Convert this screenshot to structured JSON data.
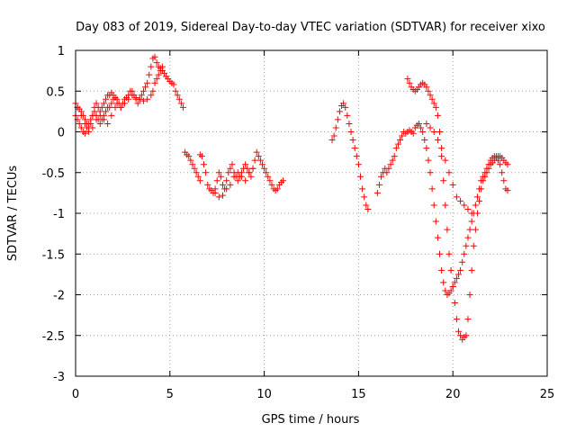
{
  "chart_data": {
    "type": "scatter",
    "title": "Day 083 of 2019, Sidereal Day-to-day VTEC variation (SDTVAR) for receiver xixo",
    "xlabel": "GPS time / hours",
    "ylabel": "SDTVAR / TECUs",
    "xlim": [
      0,
      25
    ],
    "ylim": [
      -3,
      1
    ],
    "xticks": [
      0,
      5,
      10,
      15,
      20,
      25
    ],
    "xtick_labels": [
      "0",
      "5",
      "10",
      "15",
      "20",
      "25"
    ],
    "yticks": [
      1,
      0.5,
      0,
      -0.5,
      -1,
      -1.5,
      -2,
      -2.5,
      -3
    ],
    "ytick_labels": [
      "1",
      "0.5",
      "0",
      "-0.5",
      "-1",
      "-1.5",
      "-2",
      "-2.5",
      "-3"
    ],
    "grid": true,
    "marker": "+",
    "color": "#ff0000",
    "x": [
      0.0,
      0.1,
      0.2,
      0.3,
      0.4,
      0.5,
      0.6,
      0.7,
      0.8,
      0.9,
      1.0,
      1.1,
      1.2,
      1.3,
      1.4,
      1.5,
      1.6,
      1.7,
      1.8,
      1.9,
      2.0,
      2.1,
      2.2,
      2.3,
      2.4,
      2.5,
      2.6,
      2.7,
      2.8,
      2.9,
      3.0,
      3.1,
      3.2,
      3.3,
      3.4,
      3.5,
      3.6,
      3.7,
      3.8,
      3.9,
      4.0,
      4.1,
      4.2,
      4.3,
      4.4,
      4.5,
      4.6,
      4.7,
      4.8,
      4.9,
      5.0,
      5.1,
      5.2,
      5.3,
      5.4,
      5.5,
      5.6,
      5.7,
      5.8,
      5.9,
      6.0,
      6.1,
      6.2,
      6.3,
      6.4,
      6.5,
      6.6,
      0.0,
      0.1,
      0.2,
      0.3,
      0.4,
      0.5,
      0.6,
      0.7,
      0.8,
      0.9,
      1.0,
      1.1,
      1.2,
      1.3,
      1.4,
      1.5,
      1.6,
      1.7,
      1.8,
      1.9,
      2.0,
      2.2,
      2.4,
      2.6,
      2.8,
      3.0,
      3.2,
      3.4,
      3.6,
      3.8,
      4.0,
      4.1,
      4.2,
      4.3,
      4.4,
      4.5,
      4.6,
      0.1,
      0.3,
      0.5,
      0.7,
      0.9,
      1.1,
      1.3,
      1.5,
      1.7,
      1.9,
      2.1,
      6.6,
      6.7,
      6.8,
      6.9,
      7.0,
      7.1,
      7.2,
      7.3,
      7.4,
      7.5,
      7.6,
      7.7,
      7.8,
      7.9,
      8.0,
      8.1,
      8.2,
      8.3,
      8.4,
      8.5,
      8.6,
      8.7,
      8.8,
      8.9,
      9.0,
      9.1,
      9.2,
      9.3,
      9.4,
      9.5,
      9.6,
      9.7,
      9.8,
      9.9,
      10.0,
      10.1,
      10.2,
      10.3,
      10.4,
      10.5,
      10.6,
      10.7,
      10.8,
      10.9,
      11.0,
      7.4,
      7.6,
      7.8,
      8.0,
      8.2,
      8.4,
      8.6,
      8.8,
      9.0,
      9.2,
      9.4,
      13.6,
      13.7,
      13.8,
      13.9,
      14.0,
      14.1,
      14.2,
      14.3,
      14.4,
      14.5,
      14.6,
      14.7,
      14.8,
      14.9,
      15.0,
      15.1,
      15.2,
      15.3,
      15.4,
      15.5,
      16.0,
      16.1,
      16.2,
      16.3,
      16.4,
      16.5,
      16.6,
      16.7,
      16.8,
      16.9,
      17.0,
      17.1,
      17.2,
      17.3,
      17.4,
      17.5,
      17.6,
      17.7,
      17.8,
      17.9,
      18.0,
      18.1,
      18.2,
      18.3,
      18.4,
      18.5,
      18.6,
      18.7,
      18.8,
      18.9,
      19.0,
      19.1,
      19.2,
      19.3,
      19.4,
      19.5,
      19.6,
      19.7,
      19.8,
      19.9,
      20.0,
      20.1,
      20.2,
      20.3,
      20.4,
      20.5,
      20.6,
      20.7,
      20.8,
      20.9,
      21.0,
      21.1,
      21.2,
      21.3,
      21.4,
      21.5,
      21.6,
      21.7,
      21.8,
      21.9,
      22.0,
      22.1,
      22.2,
      22.3,
      22.4,
      22.5,
      22.6,
      22.7,
      22.8,
      22.9,
      17.6,
      17.7,
      17.8,
      17.9,
      18.0,
      18.1,
      18.2,
      18.3,
      18.4,
      18.5,
      18.6,
      18.7,
      18.8,
      18.9,
      19.0,
      19.1,
      19.2,
      19.3,
      19.4,
      19.5,
      19.6,
      19.7,
      19.8,
      19.9,
      20.0,
      20.1,
      20.2,
      20.3,
      20.4,
      20.5,
      20.6,
      20.7,
      20.8,
      20.9,
      21.0,
      21.1,
      21.2,
      21.3,
      21.4,
      21.5,
      21.6,
      21.7,
      21.8,
      21.9,
      22.0,
      22.1,
      22.2,
      22.3,
      22.4,
      22.5,
      22.6,
      22.7,
      22.8,
      22.9,
      18.6,
      18.8,
      19.0,
      19.2,
      19.4,
      19.6,
      19.8,
      20.0,
      20.2,
      20.4,
      20.6,
      20.8,
      21.0
    ],
    "y": [
      0.35,
      0.3,
      0.28,
      0.25,
      0.2,
      0.15,
      0.1,
      0.05,
      0.1,
      0.2,
      0.3,
      0.35,
      0.3,
      0.25,
      0.3,
      0.35,
      0.4,
      0.45,
      0.45,
      0.48,
      0.45,
      0.42,
      0.4,
      0.35,
      0.3,
      0.35,
      0.4,
      0.42,
      0.45,
      0.5,
      0.5,
      0.45,
      0.4,
      0.35,
      0.4,
      0.45,
      0.5,
      0.55,
      0.6,
      0.7,
      0.8,
      0.9,
      0.92,
      0.85,
      0.8,
      0.78,
      0.75,
      0.72,
      0.68,
      0.65,
      0.62,
      0.6,
      0.58,
      0.5,
      0.45,
      0.4,
      0.35,
      0.3,
      -0.25,
      -0.28,
      -0.3,
      -0.35,
      -0.4,
      -0.45,
      -0.5,
      -0.55,
      -0.6,
      0.2,
      0.15,
      0.1,
      0.05,
      0.0,
      -0.02,
      0.05,
      0.1,
      0.15,
      0.2,
      0.25,
      0.2,
      0.15,
      0.1,
      0.15,
      0.2,
      0.25,
      0.3,
      0.3,
      0.35,
      0.4,
      0.35,
      0.3,
      0.35,
      0.4,
      0.45,
      0.42,
      0.4,
      0.38,
      0.4,
      0.45,
      0.5,
      0.6,
      0.65,
      0.7,
      0.75,
      0.8,
      0.3,
      0.2,
      0.1,
      0.0,
      0.05,
      0.15,
      0.2,
      0.15,
      0.1,
      0.2,
      0.3,
      -0.28,
      -0.3,
      -0.4,
      -0.5,
      -0.65,
      -0.7,
      -0.72,
      -0.75,
      -0.7,
      -0.6,
      -0.5,
      -0.55,
      -0.65,
      -0.7,
      -0.6,
      -0.5,
      -0.45,
      -0.4,
      -0.5,
      -0.55,
      -0.6,
      -0.55,
      -0.5,
      -0.45,
      -0.4,
      -0.45,
      -0.5,
      -0.55,
      -0.45,
      -0.35,
      -0.25,
      -0.3,
      -0.35,
      -0.4,
      -0.45,
      -0.5,
      -0.55,
      -0.6,
      -0.65,
      -0.7,
      -0.72,
      -0.7,
      -0.65,
      -0.62,
      -0.6,
      -0.75,
      -0.8,
      -0.78,
      -0.7,
      -0.65,
      -0.55,
      -0.5,
      -0.55,
      -0.6,
      -0.5,
      -0.45,
      -0.1,
      -0.05,
      0.05,
      0.15,
      0.25,
      0.32,
      0.35,
      0.3,
      0.2,
      0.1,
      0.0,
      -0.1,
      -0.2,
      -0.3,
      -0.4,
      -0.55,
      -0.7,
      -0.8,
      -0.9,
      -0.95,
      -0.75,
      -0.65,
      -0.55,
      -0.5,
      -0.45,
      -0.5,
      -0.45,
      -0.4,
      -0.35,
      -0.3,
      -0.2,
      -0.15,
      -0.1,
      -0.05,
      0.0,
      -0.02,
      0.0,
      0.02,
      0.0,
      -0.02,
      0.05,
      0.08,
      0.1,
      0.05,
      0.0,
      -0.1,
      -0.2,
      -0.35,
      -0.5,
      -0.7,
      -0.9,
      -1.1,
      -1.3,
      -1.5,
      -1.7,
      -1.85,
      -1.95,
      -2.0,
      -1.98,
      -1.95,
      -1.9,
      -1.85,
      -1.8,
      -1.75,
      -1.7,
      -1.6,
      -1.5,
      -1.4,
      -1.3,
      -1.2,
      -1.1,
      -1.0,
      -0.9,
      -0.8,
      -0.7,
      -0.6,
      -0.55,
      -0.5,
      -0.45,
      -0.4,
      -0.35,
      -0.32,
      -0.3,
      -0.3,
      -0.35,
      -0.4,
      -0.5,
      -0.6,
      -0.7,
      -0.72,
      0.65,
      0.6,
      0.55,
      0.52,
      0.5,
      0.52,
      0.55,
      0.58,
      0.6,
      0.58,
      0.55,
      0.5,
      0.45,
      0.4,
      0.35,
      0.3,
      0.2,
      0.0,
      -0.3,
      -0.6,
      -0.9,
      -1.2,
      -1.5,
      -1.7,
      -1.9,
      -2.1,
      -2.3,
      -2.45,
      -2.5,
      -2.55,
      -2.52,
      -2.5,
      -2.3,
      -2.0,
      -1.7,
      -1.4,
      -1.2,
      -1.0,
      -0.85,
      -0.7,
      -0.6,
      -0.55,
      -0.5,
      -0.45,
      -0.4,
      -0.38,
      -0.35,
      -0.32,
      -0.3,
      -0.3,
      -0.32,
      -0.35,
      -0.38,
      -0.4,
      0.1,
      0.05,
      0.0,
      -0.1,
      -0.2,
      -0.35,
      -0.5,
      -0.65,
      -0.8,
      -0.85,
      -0.9,
      -0.95,
      -1.0
    ]
  }
}
